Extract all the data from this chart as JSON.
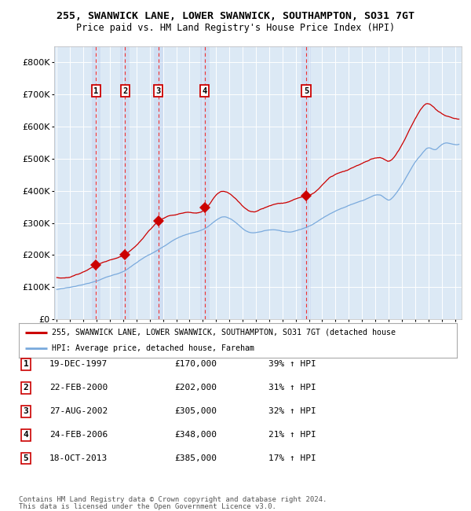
{
  "title1": "255, SWANWICK LANE, LOWER SWANWICK, SOUTHAMPTON, SO31 7GT",
  "title2": "Price paid vs. HM Land Registry's House Price Index (HPI)",
  "legend_red": "255, SWANWICK LANE, LOWER SWANWICK, SOUTHAMPTON, SO31 7GT (detached house",
  "legend_blue": "HPI: Average price, detached house, Fareham",
  "footer1": "Contains HM Land Registry data © Crown copyright and database right 2024.",
  "footer2": "This data is licensed under the Open Government Licence v3.0.",
  "transactions": [
    {
      "num": "1",
      "date": "19-DEC-1997",
      "price": 170000,
      "year": 1997.96,
      "pct": "39%",
      "dir": "↑"
    },
    {
      "num": "2",
      "date": "22-FEB-2000",
      "price": 202000,
      "year": 2000.14,
      "pct": "31%",
      "dir": "↑"
    },
    {
      "num": "3",
      "date": "27-AUG-2002",
      "price": 305000,
      "year": 2002.65,
      "pct": "32%",
      "dir": "↑"
    },
    {
      "num": "4",
      "date": "24-FEB-2006",
      "price": 348000,
      "year": 2006.14,
      "pct": "21%",
      "dir": "↑"
    },
    {
      "num": "5",
      "date": "18-OCT-2013",
      "price": 385000,
      "year": 2013.8,
      "pct": "17%",
      "dir": "↑"
    }
  ],
  "ylim": [
    0,
    850000
  ],
  "xlim_start": 1994.8,
  "xlim_end": 2025.5,
  "bg_color": "#dce9f5",
  "red_color": "#cc0000",
  "blue_color": "#7aaadd",
  "vline_color": "#ee3333",
  "band_color": "#bbccee"
}
